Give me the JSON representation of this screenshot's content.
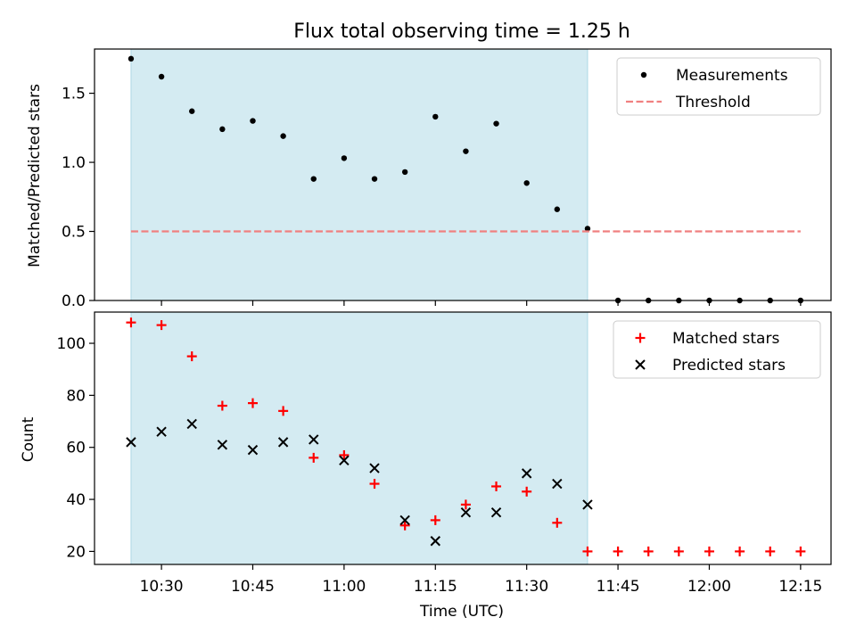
{
  "chart_data": [
    {
      "type": "scatter",
      "title": "Flux total observing time = 1.25 h",
      "xlabel": "",
      "ylabel": "Matched/Predicted stars",
      "ylim": [
        0,
        1.82
      ],
      "yticks": [
        "0.0",
        "0.5",
        "1.0",
        "1.5"
      ],
      "ytick_values": [
        0,
        0.5,
        1.0,
        1.5
      ],
      "x_range": [
        "10:19",
        "12:20"
      ],
      "xticks": [
        "10:30",
        "10:45",
        "11:00",
        "11:15",
        "11:30",
        "11:45",
        "12:00",
        "12:15"
      ],
      "shaded_interval": {
        "start": "10:25",
        "end": "11:40",
        "color": "#add8e6"
      },
      "legend": {
        "position": "top-right"
      },
      "series": [
        {
          "name": "Measurements",
          "kind": "points",
          "color": "#000000",
          "x": [
            "10:25",
            "10:30",
            "10:35",
            "10:40",
            "10:45",
            "10:50",
            "10:55",
            "11:00",
            "11:05",
            "11:10",
            "11:15",
            "11:20",
            "11:25",
            "11:30",
            "11:35",
            "11:40",
            "11:45",
            "11:50",
            "11:55",
            "12:00",
            "12:05",
            "12:10",
            "12:15"
          ],
          "y": [
            1.75,
            1.62,
            1.37,
            1.24,
            1.3,
            1.19,
            0.88,
            1.03,
            0.88,
            0.93,
            1.33,
            1.08,
            1.28,
            0.85,
            0.66,
            0.52,
            0,
            0,
            0,
            0,
            0,
            0,
            0
          ]
        },
        {
          "name": "Threshold",
          "kind": "dashed-line",
          "color": "#f08080",
          "x": [
            "10:25",
            "12:15"
          ],
          "y": [
            0.5,
            0.5
          ]
        }
      ]
    },
    {
      "type": "scatter",
      "title": "",
      "xlabel": "Time (UTC)",
      "ylabel": "Count",
      "ylim": [
        15,
        112
      ],
      "yticks": [
        "20",
        "40",
        "60",
        "80",
        "100"
      ],
      "ytick_values": [
        20,
        40,
        60,
        80,
        100
      ],
      "x_range": [
        "10:19",
        "12:20"
      ],
      "xticks": [
        "10:30",
        "10:45",
        "11:00",
        "11:15",
        "11:30",
        "11:45",
        "12:00",
        "12:15"
      ],
      "shaded_interval": {
        "start": "10:25",
        "end": "11:40",
        "color": "#add8e6"
      },
      "legend": {
        "position": "top-right"
      },
      "series": [
        {
          "name": "Matched stars",
          "kind": "plus",
          "color": "#ff0000",
          "x": [
            "10:25",
            "10:30",
            "10:35",
            "10:40",
            "10:45",
            "10:50",
            "10:55",
            "11:00",
            "11:05",
            "11:10",
            "11:15",
            "11:20",
            "11:25",
            "11:30",
            "11:35",
            "11:40",
            "11:45",
            "11:50",
            "11:55",
            "12:00",
            "12:05",
            "12:10",
            "12:15"
          ],
          "y": [
            108,
            107,
            95,
            76,
            77,
            74,
            56,
            57,
            46,
            30,
            32,
            38,
            45,
            43,
            31,
            20,
            20,
            20,
            20,
            20,
            20,
            20,
            20
          ]
        },
        {
          "name": "Predicted stars",
          "kind": "cross",
          "color": "#000000",
          "x": [
            "10:25",
            "10:30",
            "10:35",
            "10:40",
            "10:45",
            "10:50",
            "10:55",
            "11:00",
            "11:05",
            "11:10",
            "11:15",
            "11:20",
            "11:25",
            "11:30",
            "11:35",
            "11:40"
          ],
          "y": [
            62,
            66,
            69,
            61,
            59,
            62,
            63,
            55,
            52,
            32,
            24,
            35,
            35,
            50,
            46,
            38
          ]
        }
      ]
    }
  ]
}
